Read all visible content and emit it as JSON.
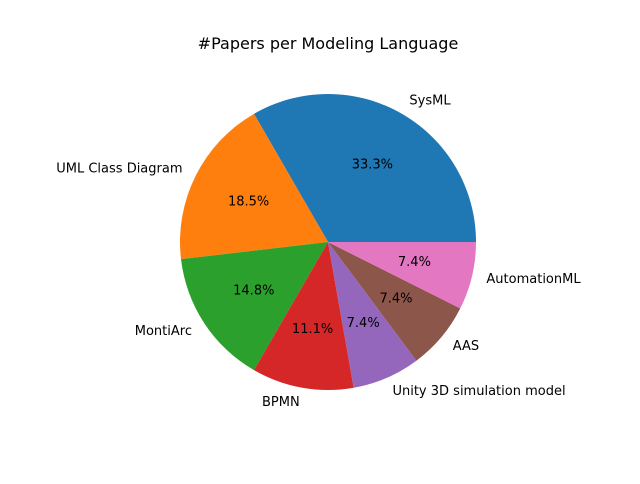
{
  "chart_data": {
    "type": "pie",
    "title": "#Papers per Modeling Language",
    "categories": [
      "SysML",
      "UML Class Diagram",
      "MontiArc",
      "BPMN",
      "Unity 3D simulation model",
      "AAS",
      "AutomationML"
    ],
    "values": [
      9,
      5,
      4,
      3,
      2,
      2,
      2
    ],
    "percent_labels": [
      "33.3%",
      "18.5%",
      "14.8%",
      "11.1%",
      "7.4%",
      "7.4%",
      "7.4%"
    ],
    "colors": [
      "#1f77b4",
      "#ff7f0e",
      "#2ca02c",
      "#d62728",
      "#9467bd",
      "#8c564b",
      "#e377c2"
    ],
    "start_angle_deg": 0,
    "direction": "counterclockwise",
    "legend": "none"
  }
}
